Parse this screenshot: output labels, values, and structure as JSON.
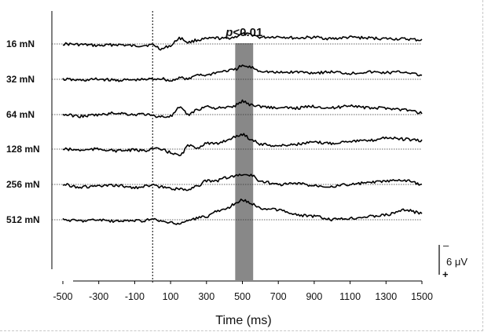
{
  "chart_data": {
    "type": "line",
    "subtype": "stacked-traces",
    "xlabel": "Time (ms)",
    "xlim": [
      -500,
      1500
    ],
    "xticks": [
      -500,
      -300,
      -100,
      100,
      300,
      500,
      700,
      900,
      1100,
      1300,
      1500
    ],
    "x_tick_labels": [
      "-500",
      "-300",
      "-100",
      "100",
      "300",
      "500",
      "700",
      "900",
      "1100",
      "1300",
      "1500"
    ],
    "stimulus_onset_ms": 0,
    "baseline_style": "dotted",
    "significance": {
      "label_prefix": "p",
      "label_suffix": "<0.01",
      "start_ms": 460,
      "end_ms": 560,
      "color": "#888888"
    },
    "scale_bar": {
      "value_uV": 6,
      "label": "6 μV",
      "top_sign": "–",
      "bottom_sign": "+"
    },
    "line_color": "#000000",
    "x": [
      -500,
      -400,
      -300,
      -200,
      -100,
      -50,
      0,
      50,
      100,
      150,
      200,
      250,
      300,
      350,
      400,
      450,
      500,
      550,
      600,
      700,
      800,
      900,
      1000,
      1100,
      1200,
      1300,
      1400,
      1500
    ],
    "series": [
      {
        "name": "16 mN",
        "values": [
          0.0,
          0.2,
          0.5,
          0.2,
          0.6,
          0.4,
          0.3,
          1.5,
          0.5,
          -1.8,
          -0.5,
          -1.2,
          -1.5,
          -1.8,
          -1.6,
          -2.0,
          -3.0,
          -2.8,
          -2.0,
          -2.2,
          -1.8,
          -2.0,
          -1.6,
          -2.0,
          -1.8,
          -1.6,
          -1.5,
          -1.2
        ]
      },
      {
        "name": "32 mN",
        "values": [
          0.0,
          0.3,
          0.0,
          0.3,
          0.2,
          0.1,
          -0.1,
          -0.2,
          0.5,
          -0.5,
          0.0,
          -1.5,
          -1.2,
          -2.0,
          -2.5,
          -2.8,
          -4.0,
          -3.6,
          -2.5,
          -2.0,
          -2.2,
          -2.0,
          -2.2,
          -1.8,
          -2.2,
          -2.0,
          -2.2,
          -1.2
        ]
      },
      {
        "name": "64 mN",
        "values": [
          0.0,
          0.5,
          0.1,
          -0.5,
          0.0,
          -0.2,
          0.4,
          0.6,
          0.5,
          -2.0,
          0.0,
          -1.5,
          -2.5,
          -2.0,
          -2.0,
          -2.5,
          -4.0,
          -3.0,
          -2.5,
          -2.0,
          -2.0,
          -2.5,
          -2.0,
          -2.8,
          -2.0,
          -2.0,
          -1.5,
          -0.5
        ]
      },
      {
        "name": "128 mN",
        "values": [
          0.0,
          0.3,
          0.0,
          0.5,
          0.3,
          0.5,
          -0.2,
          0.2,
          1.0,
          2.0,
          -1.0,
          -0.5,
          -1.8,
          -1.5,
          -2.5,
          -3.5,
          -4.5,
          -3.0,
          -1.5,
          -1.0,
          -1.5,
          -2.0,
          -1.8,
          -2.5,
          -2.5,
          -3.5,
          -3.0,
          -2.5
        ]
      },
      {
        "name": "256 mN",
        "values": [
          0.0,
          0.8,
          0.5,
          0.3,
          1.0,
          0.5,
          0.3,
          0.8,
          1.2,
          1.5,
          1.5,
          0.3,
          -1.0,
          -1.0,
          -2.0,
          -2.5,
          -3.0,
          -2.8,
          -1.0,
          0.0,
          -0.3,
          0.3,
          0.5,
          0.0,
          -0.5,
          -1.0,
          -1.2,
          0.0
        ]
      },
      {
        "name": "512 mN",
        "values": [
          0.0,
          0.3,
          0.0,
          0.5,
          0.2,
          0.3,
          -0.2,
          0.5,
          1.0,
          1.2,
          0.2,
          -0.5,
          -1.0,
          -2.5,
          -3.0,
          -4.5,
          -6.0,
          -5.0,
          -3.5,
          -3.0,
          -1.5,
          -1.0,
          0.0,
          -0.5,
          -1.0,
          -1.5,
          -3.0,
          -2.0
        ]
      }
    ]
  }
}
